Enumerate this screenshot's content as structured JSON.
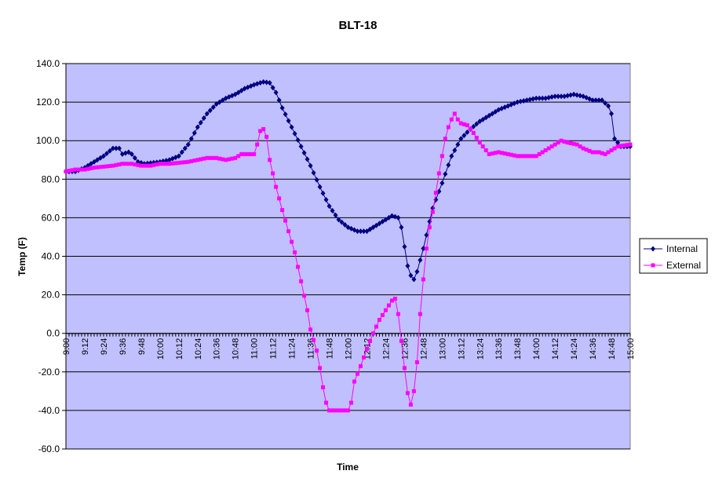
{
  "chart_data": {
    "type": "line",
    "title": "BLT-18",
    "xlabel": "Time",
    "ylabel": "Temp (F)",
    "ylim": [
      -60,
      140
    ],
    "yticks": [
      "-60.0",
      "-40.0",
      "-20.0",
      "0.0",
      "20.0",
      "40.0",
      "60.0",
      "80.0",
      "100.0",
      "120.0",
      "140.0"
    ],
    "xlim": [
      "9:00",
      "15:00"
    ],
    "xticks": [
      "9:00",
      "9:12",
      "9:24",
      "9:36",
      "9:48",
      "10:00",
      "10:12",
      "10:24",
      "10:36",
      "10:48",
      "11:00",
      "11:12",
      "11:24",
      "11:36",
      "11:48",
      "12:00",
      "12:12",
      "12:24",
      "12:36",
      "12:48",
      "13:00",
      "13:12",
      "13:24",
      "13:36",
      "13:48",
      "14:00",
      "14:12",
      "14:24",
      "14:36",
      "14:48",
      "15:00"
    ],
    "grid": "horizontal",
    "legend_position": "right",
    "plot_background": "#c0c0ff",
    "series": [
      {
        "name": "Internal",
        "color": "#000080",
        "marker": "diamond",
        "points": [
          [
            "9:00",
            84
          ],
          [
            "9:06",
            84
          ],
          [
            "9:12",
            86
          ],
          [
            "9:18",
            89
          ],
          [
            "9:24",
            92
          ],
          [
            "9:30",
            96
          ],
          [
            "9:34",
            96
          ],
          [
            "9:36",
            93
          ],
          [
            "9:40",
            94
          ],
          [
            "9:42",
            93
          ],
          [
            "9:46",
            89
          ],
          [
            "9:50",
            88
          ],
          [
            "10:00",
            89
          ],
          [
            "10:06",
            90
          ],
          [
            "10:12",
            92
          ],
          [
            "10:18",
            98
          ],
          [
            "10:24",
            107
          ],
          [
            "10:30",
            114
          ],
          [
            "10:36",
            119
          ],
          [
            "10:42",
            122
          ],
          [
            "10:48",
            124
          ],
          [
            "10:54",
            127
          ],
          [
            "11:00",
            129
          ],
          [
            "11:06",
            130.5
          ],
          [
            "11:10",
            130
          ],
          [
            "11:14",
            125
          ],
          [
            "11:18",
            117
          ],
          [
            "11:24",
            107
          ],
          [
            "11:30",
            97
          ],
          [
            "11:36",
            87
          ],
          [
            "11:42",
            76
          ],
          [
            "11:48",
            66
          ],
          [
            "11:54",
            59
          ],
          [
            "12:00",
            55
          ],
          [
            "12:06",
            53
          ],
          [
            "12:12",
            53
          ],
          [
            "12:18",
            56
          ],
          [
            "12:24",
            59
          ],
          [
            "12:28",
            61
          ],
          [
            "12:32",
            60
          ],
          [
            "12:34",
            55
          ],
          [
            "12:36",
            45
          ],
          [
            "12:38",
            35
          ],
          [
            "12:40",
            30
          ],
          [
            "12:42",
            28
          ],
          [
            "12:44",
            32
          ],
          [
            "12:48",
            44
          ],
          [
            "12:54",
            65
          ],
          [
            "13:00",
            78
          ],
          [
            "13:06",
            92
          ],
          [
            "13:12",
            101
          ],
          [
            "13:18",
            106
          ],
          [
            "13:24",
            110
          ],
          [
            "13:30",
            113
          ],
          [
            "13:36",
            116
          ],
          [
            "13:42",
            118
          ],
          [
            "13:48",
            120
          ],
          [
            "13:54",
            121
          ],
          [
            "14:00",
            122
          ],
          [
            "14:06",
            122
          ],
          [
            "14:12",
            123
          ],
          [
            "14:18",
            123
          ],
          [
            "14:24",
            124
          ],
          [
            "14:30",
            123
          ],
          [
            "14:36",
            121
          ],
          [
            "14:42",
            121
          ],
          [
            "14:46",
            118
          ],
          [
            "14:48",
            114
          ],
          [
            "14:50",
            101
          ],
          [
            "14:54",
            97
          ],
          [
            "15:00",
            97
          ]
        ]
      },
      {
        "name": "External",
        "color": "#ff00ff",
        "marker": "square",
        "points": [
          [
            "9:00",
            84
          ],
          [
            "9:06",
            85
          ],
          [
            "9:12",
            85
          ],
          [
            "9:18",
            86
          ],
          [
            "9:24",
            86.5
          ],
          [
            "9:30",
            87
          ],
          [
            "9:36",
            88
          ],
          [
            "9:42",
            88
          ],
          [
            "9:48",
            87
          ],
          [
            "9:54",
            87
          ],
          [
            "10:00",
            88
          ],
          [
            "10:06",
            88
          ],
          [
            "10:12",
            88.5
          ],
          [
            "10:18",
            89
          ],
          [
            "10:24",
            90
          ],
          [
            "10:30",
            91
          ],
          [
            "10:36",
            91
          ],
          [
            "10:42",
            90
          ],
          [
            "10:48",
            91
          ],
          [
            "10:52",
            93
          ],
          [
            "10:56",
            93
          ],
          [
            "11:00",
            93
          ],
          [
            "11:02",
            98
          ],
          [
            "11:04",
            105
          ],
          [
            "11:06",
            106
          ],
          [
            "11:08",
            102
          ],
          [
            "11:10",
            90
          ],
          [
            "11:14",
            76
          ],
          [
            "11:18",
            64
          ],
          [
            "11:22",
            53
          ],
          [
            "11:26",
            42
          ],
          [
            "11:30",
            27
          ],
          [
            "11:34",
            12
          ],
          [
            "11:36",
            2
          ],
          [
            "11:40",
            -9
          ],
          [
            "11:42",
            -18
          ],
          [
            "11:44",
            -28
          ],
          [
            "11:46",
            -36
          ],
          [
            "11:48",
            -40
          ],
          [
            "11:54",
            -40
          ],
          [
            "12:00",
            -40
          ],
          [
            "12:02",
            -36
          ],
          [
            "12:04",
            -25
          ],
          [
            "12:08",
            -17
          ],
          [
            "12:12",
            -8
          ],
          [
            "12:16",
            0
          ],
          [
            "12:20",
            7
          ],
          [
            "12:24",
            12
          ],
          [
            "12:28",
            17
          ],
          [
            "12:30",
            18
          ],
          [
            "12:32",
            10
          ],
          [
            "12:34",
            -4
          ],
          [
            "12:36",
            -18
          ],
          [
            "12:38",
            -31
          ],
          [
            "12:40",
            -37
          ],
          [
            "12:42",
            -30
          ],
          [
            "12:44",
            -15
          ],
          [
            "12:46",
            10
          ],
          [
            "12:48",
            28
          ],
          [
            "12:50",
            44
          ],
          [
            "12:52",
            55
          ],
          [
            "12:54",
            63
          ],
          [
            "12:56",
            73
          ],
          [
            "12:58",
            83
          ],
          [
            "13:00",
            92
          ],
          [
            "13:02",
            101
          ],
          [
            "13:04",
            107
          ],
          [
            "13:06",
            111
          ],
          [
            "13:08",
            114
          ],
          [
            "13:10",
            111
          ],
          [
            "13:12",
            109
          ],
          [
            "13:16",
            108
          ],
          [
            "13:20",
            104
          ],
          [
            "13:24",
            99
          ],
          [
            "13:30",
            93
          ],
          [
            "13:36",
            94
          ],
          [
            "13:42",
            93
          ],
          [
            "13:48",
            92
          ],
          [
            "13:54",
            92
          ],
          [
            "14:00",
            92
          ],
          [
            "14:06",
            95
          ],
          [
            "14:12",
            98
          ],
          [
            "14:16",
            100
          ],
          [
            "14:20",
            99
          ],
          [
            "14:26",
            98
          ],
          [
            "14:30",
            96
          ],
          [
            "14:36",
            94
          ],
          [
            "14:40",
            94
          ],
          [
            "14:44",
            93
          ],
          [
            "14:48",
            95
          ],
          [
            "14:52",
            97
          ],
          [
            "15:00",
            98
          ]
        ]
      }
    ]
  }
}
